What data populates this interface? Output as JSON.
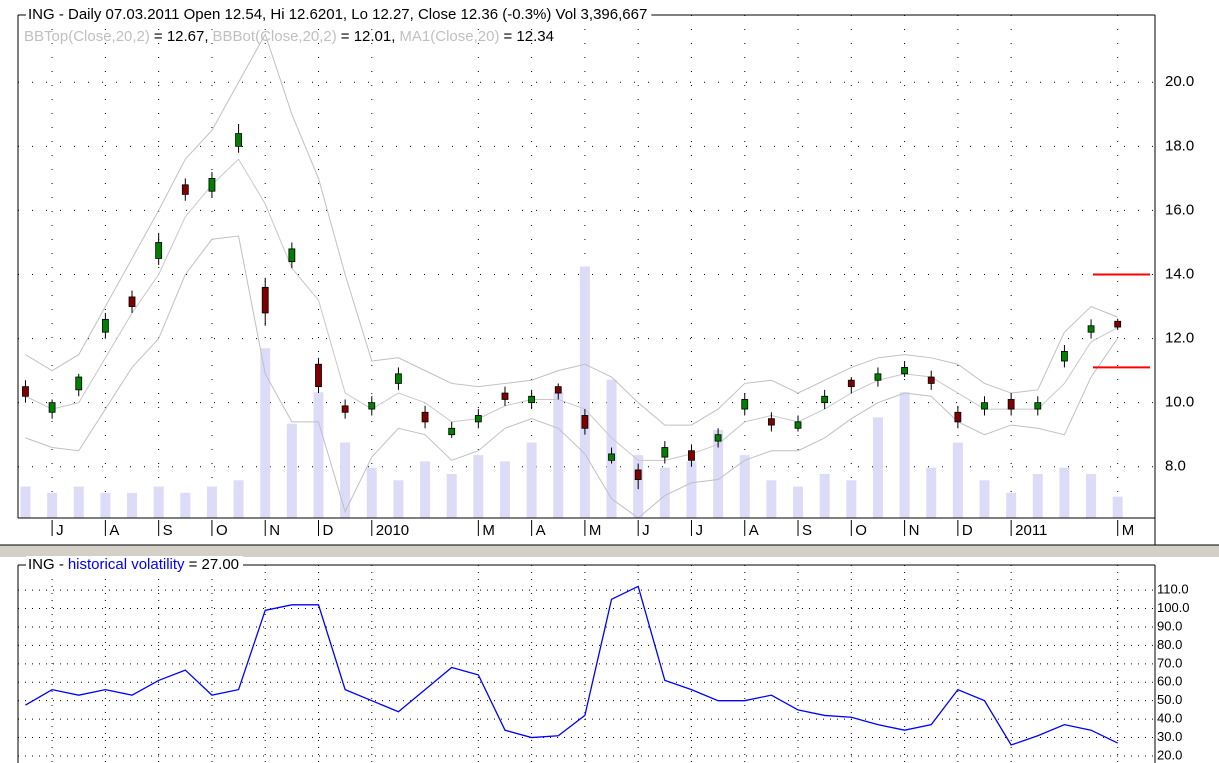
{
  "chart_data": [
    {
      "type": "candlestick",
      "title": "ING - Daily 07.03.2011 Open 12.54, Hi 12.6201, Lo 12.27, Close 12.36 (-0.3%) Vol 3,396,667",
      "x": [
        0.5,
        1,
        1.5,
        2,
        2.5,
        3,
        3.5,
        4,
        4.5,
        5,
        5.5,
        6,
        6.5,
        7,
        7.5,
        8,
        8.5,
        9,
        9.5,
        10,
        10.5,
        11,
        11.5,
        12,
        12.5,
        13,
        13.5,
        14,
        14.5,
        15,
        15.5,
        16,
        16.5,
        17,
        17.5,
        18,
        18.5,
        19,
        19.5,
        20,
        20.5,
        21
      ],
      "open": [
        10.5,
        9.7,
        10.4,
        12.2,
        13.3,
        14.5,
        16.8,
        16.6,
        18.0,
        13.6,
        14.4,
        11.2,
        9.9,
        9.8,
        10.6,
        9.7,
        9.0,
        9.4,
        10.3,
        10.0,
        10.5,
        9.6,
        8.2,
        7.9,
        8.3,
        8.5,
        8.8,
        9.8,
        9.5,
        9.2,
        10.0,
        10.7,
        10.7,
        10.9,
        10.8,
        9.7,
        9.8,
        10.1,
        9.8,
        11.3,
        12.2,
        12.54
      ],
      "high": [
        10.7,
        10.1,
        10.9,
        12.8,
        13.5,
        15.3,
        17.0,
        17.2,
        18.7,
        13.9,
        15.0,
        11.4,
        10.1,
        10.2,
        11.1,
        9.9,
        9.4,
        9.8,
        10.5,
        10.4,
        10.6,
        9.8,
        8.6,
        8.1,
        8.8,
        8.7,
        9.2,
        10.3,
        9.7,
        9.6,
        10.4,
        10.8,
        11.1,
        11.3,
        11.0,
        9.9,
        10.2,
        10.3,
        10.2,
        11.8,
        12.6,
        12.6201
      ],
      "low": [
        10.0,
        9.5,
        10.2,
        12.0,
        12.8,
        14.3,
        16.3,
        16.4,
        17.8,
        12.4,
        14.2,
        10.3,
        9.5,
        9.6,
        10.4,
        9.2,
        8.9,
        9.2,
        9.9,
        9.8,
        10.1,
        9.0,
        8.1,
        7.3,
        8.1,
        8.0,
        8.6,
        9.6,
        9.1,
        9.1,
        9.8,
        10.3,
        10.5,
        10.8,
        10.4,
        9.2,
        9.6,
        9.6,
        9.6,
        11.1,
        12.0,
        12.27
      ],
      "close": [
        10.2,
        10.0,
        10.8,
        12.6,
        13.0,
        15.0,
        16.5,
        17.0,
        18.4,
        12.8,
        14.8,
        10.5,
        9.7,
        10.0,
        10.9,
        9.4,
        9.2,
        9.6,
        10.1,
        10.2,
        10.3,
        9.2,
        8.4,
        7.6,
        8.6,
        8.2,
        9.0,
        10.1,
        9.3,
        9.4,
        10.2,
        10.5,
        10.9,
        11.1,
        10.6,
        9.4,
        10.0,
        9.8,
        10.0,
        11.6,
        12.4,
        12.36
      ],
      "up_color": "#008000",
      "down_color": "#800000",
      "overlays": [
        {
          "name": "BBTop(Close,20,2)",
          "legend_label": "= 12.67,",
          "color": "#c0c0c0",
          "values": [
            11.5,
            11.0,
            11.5,
            13.0,
            14.5,
            16.0,
            17.6,
            18.5,
            20.0,
            21.5,
            19.0,
            17.0,
            14.0,
            11.3,
            11.4,
            11.0,
            10.6,
            10.5,
            10.6,
            10.7,
            11.0,
            11.2,
            10.8,
            10.0,
            9.3,
            9.3,
            9.8,
            10.6,
            10.7,
            10.3,
            10.7,
            11.1,
            11.4,
            11.5,
            11.4,
            11.2,
            10.6,
            10.3,
            10.4,
            12.2,
            13.0,
            12.67
          ]
        },
        {
          "name": "BBBot(Close,20,2)",
          "legend_label": "= 12.01,",
          "color": "#c0c0c0",
          "values": [
            8.9,
            8.6,
            8.5,
            9.8,
            11.1,
            12.0,
            14.0,
            15.1,
            15.2,
            10.9,
            9.4,
            9.4,
            6.6,
            8.3,
            9.2,
            9.0,
            8.2,
            8.5,
            9.2,
            9.5,
            9.2,
            8.4,
            7.0,
            6.4,
            7.1,
            7.5,
            7.6,
            8.2,
            8.5,
            8.5,
            8.9,
            9.5,
            10.0,
            10.3,
            10.2,
            9.4,
            9.0,
            9.3,
            9.2,
            9.0,
            10.8,
            12.01
          ]
        },
        {
          "name": "MA1(Close,20)",
          "legend_label": "= 12.34",
          "color": "#c8c8c8",
          "values": [
            10.2,
            9.8,
            10.0,
            11.4,
            12.8,
            14.0,
            15.8,
            16.8,
            17.6,
            16.2,
            14.2,
            13.2,
            10.3,
            9.8,
            10.3,
            10.0,
            9.4,
            9.5,
            9.9,
            10.1,
            10.1,
            9.8,
            8.9,
            8.2,
            8.2,
            8.4,
            8.7,
            9.4,
            9.6,
            9.4,
            9.8,
            10.3,
            10.7,
            10.9,
            10.8,
            10.3,
            9.8,
            9.8,
            9.8,
            10.6,
            11.9,
            12.34
          ]
        }
      ],
      "volume": {
        "color": "#dcdcf8",
        "axis": "y2",
        "values": [
          5000000,
          4000000,
          5000000,
          4000000,
          4000000,
          5000000,
          4000000,
          5000000,
          6000000,
          27000000,
          15000000,
          20000000,
          12000000,
          8000000,
          6000000,
          9000000,
          7000000,
          10000000,
          9000000,
          12000000,
          20000000,
          40000000,
          22000000,
          10000000,
          8000000,
          9000000,
          14000000,
          10000000,
          6000000,
          5000000,
          7000000,
          6000000,
          16000000,
          20000000,
          8000000,
          12000000,
          6000000,
          4000000,
          7000000,
          8000000,
          7000000,
          3396667
        ]
      },
      "y2lim": [
        0,
        80000000
      ],
      "hlines": {
        "color": "#ff0000",
        "values": [
          14.0,
          11.1
        ]
      },
      "xlim": [
        0.36,
        21.7
      ],
      "xticks": [
        {
          "value": 1,
          "label": "J"
        },
        {
          "value": 2,
          "label": "A"
        },
        {
          "value": 3,
          "label": "S"
        },
        {
          "value": 4,
          "label": "O"
        },
        {
          "value": 5,
          "label": "N"
        },
        {
          "value": 6,
          "label": "D"
        },
        {
          "value": 7,
          "label": "2010"
        },
        {
          "value": 9,
          "label": "M"
        },
        {
          "value": 10,
          "label": "A"
        },
        {
          "value": 11,
          "label": "M"
        },
        {
          "value": 12,
          "label": "J"
        },
        {
          "value": 13,
          "label": "J"
        },
        {
          "value": 14,
          "label": "A"
        },
        {
          "value": 15,
          "label": "S"
        },
        {
          "value": 16,
          "label": "O"
        },
        {
          "value": 17,
          "label": "N"
        },
        {
          "value": 18,
          "label": "D"
        },
        {
          "value": 19,
          "label": "2011"
        },
        {
          "value": 21,
          "label": "M"
        }
      ],
      "ylim": [
        6.4,
        22.1
      ],
      "yticks": [
        {
          "value": 8,
          "label": "8.0"
        },
        {
          "value": 10,
          "label": "10.0"
        },
        {
          "value": 12,
          "label": "12.0"
        },
        {
          "value": 14,
          "label": "14.0"
        },
        {
          "value": 16,
          "label": "16.0"
        },
        {
          "value": 18,
          "label": "18.0"
        },
        {
          "value": 20,
          "label": "20.0"
        }
      ],
      "grid": true
    },
    {
      "type": "line",
      "title": "ING -",
      "x": [
        0.5,
        1,
        1.5,
        2,
        2.5,
        3,
        3.5,
        4,
        4.5,
        5,
        5.5,
        6,
        6.5,
        7,
        7.5,
        8,
        8.5,
        9,
        9.5,
        10,
        10.5,
        11,
        11.5,
        12,
        12.5,
        13,
        13.5,
        14,
        14.5,
        15,
        15.5,
        16,
        16.5,
        17,
        17.5,
        18,
        18.5,
        19,
        19.5,
        20,
        20.5,
        21
      ],
      "series": [
        {
          "name": "historical volatility",
          "legend_label": "= 27.00",
          "color": "#0000ff",
          "values": [
            47.6,
            56,
            53,
            56,
            53,
            61,
            66.6,
            53,
            56,
            99,
            102,
            102,
            56,
            50,
            44,
            56,
            68,
            64,
            34,
            30,
            31,
            42,
            105,
            112,
            61,
            56,
            50,
            50,
            53,
            45,
            42,
            41,
            37,
            34,
            37,
            56,
            50,
            26,
            31,
            37,
            34,
            27
          ]
        }
      ],
      "xlim": [
        0.36,
        21.7
      ],
      "ylim": [
        16.2,
        123.6
      ],
      "yticks": [
        {
          "value": 20,
          "label": "20.0"
        },
        {
          "value": 30,
          "label": "30.0"
        },
        {
          "value": 40,
          "label": "40.0"
        },
        {
          "value": 50,
          "label": "50.0"
        },
        {
          "value": 60,
          "label": "60.0"
        },
        {
          "value": 70,
          "label": "70.0"
        },
        {
          "value": 80,
          "label": "80.0"
        },
        {
          "value": 90,
          "label": "90.0"
        },
        {
          "value": 100,
          "label": "100.0"
        },
        {
          "value": 110,
          "label": "110.0"
        }
      ],
      "grid": true
    }
  ]
}
